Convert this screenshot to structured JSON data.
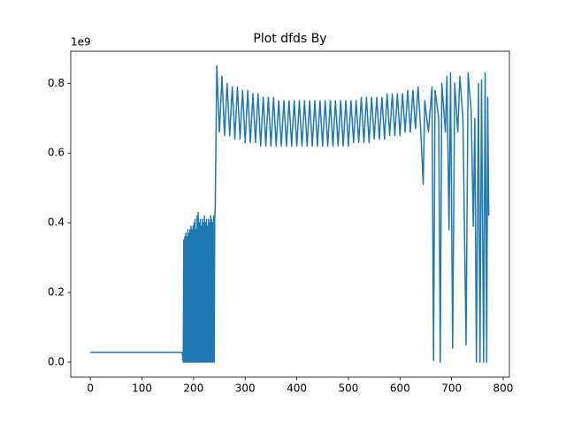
{
  "chart_data": {
    "type": "line",
    "title": "Plot dfds By",
    "y_offset_label": "1e9",
    "color": "#1f77b4",
    "x": [
      0,
      178,
      180,
      181,
      182,
      183,
      184,
      185,
      186,
      187,
      188,
      189,
      190,
      191,
      192,
      193,
      194,
      195,
      196,
      197,
      198,
      199,
      200,
      201,
      202,
      203,
      204,
      205,
      206,
      207,
      208,
      209,
      210,
      211,
      212,
      213,
      214,
      215,
      216,
      217,
      218,
      219,
      220,
      221,
      222,
      223,
      224,
      225,
      226,
      227,
      228,
      229,
      230,
      231,
      232,
      233,
      234,
      235,
      236,
      237,
      238,
      239,
      240,
      241,
      242,
      245,
      250,
      255,
      260,
      265,
      270,
      275,
      280,
      285,
      290,
      295,
      300,
      305,
      310,
      315,
      320,
      325,
      330,
      335,
      340,
      345,
      350,
      355,
      360,
      365,
      370,
      375,
      380,
      385,
      390,
      395,
      400,
      405,
      410,
      415,
      420,
      425,
      430,
      435,
      440,
      445,
      450,
      455,
      460,
      465,
      470,
      475,
      480,
      485,
      490,
      495,
      500,
      505,
      510,
      515,
      520,
      525,
      530,
      535,
      540,
      545,
      550,
      555,
      560,
      565,
      570,
      575,
      580,
      585,
      590,
      595,
      600,
      605,
      610,
      615,
      620,
      625,
      630,
      635,
      640,
      645,
      648,
      655,
      662,
      665,
      668,
      675,
      678,
      681,
      688,
      691,
      695,
      698,
      702,
      706,
      712,
      716,
      722,
      728,
      732,
      738,
      742,
      745,
      748,
      752,
      755,
      758,
      762,
      765,
      768,
      770,
      772
    ],
    "values": [
      0.028,
      0.028,
      0,
      0.35,
      0,
      0.36,
      0,
      0.37,
      0,
      0.36,
      0,
      0.38,
      0,
      0.37,
      0,
      0.38,
      0,
      0.39,
      0,
      0.38,
      0,
      0.39,
      0,
      0.4,
      0,
      0.41,
      0,
      0.38,
      0,
      0.42,
      0,
      0.43,
      0,
      0.4,
      0,
      0.41,
      0,
      0.39,
      0,
      0.41,
      0,
      0.4,
      0,
      0.42,
      0,
      0.4,
      0,
      0.41,
      0,
      0.39,
      0,
      0.41,
      0,
      0.4,
      0,
      0.42,
      0,
      0.41,
      0,
      0.4,
      0,
      0.42,
      0,
      0.41,
      0.45,
      0.85,
      0.66,
      0.82,
      0.65,
      0.8,
      0.65,
      0.79,
      0.64,
      0.79,
      0.64,
      0.78,
      0.63,
      0.78,
      0.63,
      0.77,
      0.63,
      0.77,
      0.62,
      0.76,
      0.62,
      0.76,
      0.62,
      0.76,
      0.62,
      0.75,
      0.62,
      0.75,
      0.62,
      0.75,
      0.62,
      0.75,
      0.62,
      0.75,
      0.62,
      0.75,
      0.62,
      0.75,
      0.62,
      0.75,
      0.62,
      0.75,
      0.62,
      0.75,
      0.62,
      0.75,
      0.62,
      0.75,
      0.62,
      0.75,
      0.62,
      0.75,
      0.62,
      0.75,
      0.63,
      0.75,
      0.63,
      0.76,
      0.63,
      0.76,
      0.63,
      0.76,
      0.64,
      0.76,
      0.64,
      0.76,
      0.64,
      0.77,
      0.65,
      0.77,
      0.65,
      0.77,
      0.65,
      0.77,
      0.66,
      0.78,
      0.66,
      0.78,
      0.67,
      0.79,
      0.67,
      0.51,
      0.75,
      0.66,
      0.79,
      0.005,
      0.78,
      0.7,
      0,
      0.8,
      0.66,
      0.82,
      0.38,
      0.83,
      0.04,
      0.8,
      0.66,
      0.82,
      0.7,
      0.05,
      0.83,
      0.72,
      0.39,
      0.7,
      0,
      0.8,
      0,
      0.81,
      0,
      0.83,
      0,
      0.76,
      0.42
    ],
    "xlim": [
      -38,
      812
    ],
    "ylim": [
      -0.043,
      0.892
    ],
    "xticks": [
      0,
      100,
      200,
      300,
      400,
      500,
      600,
      700,
      800
    ],
    "yticks": [
      {
        "value": 0,
        "label": "0.0"
      },
      0.2,
      0.4,
      0.6,
      0.8
    ]
  }
}
